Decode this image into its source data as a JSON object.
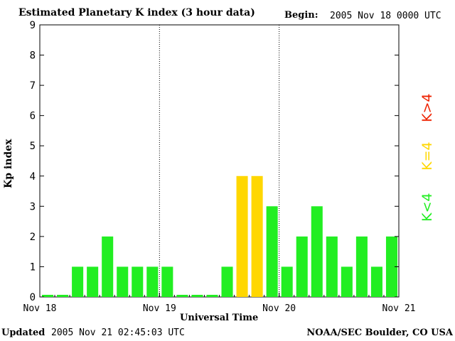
{
  "header": {
    "title": "Estimated Planetary K index (3 hour data)",
    "begin_label": "Begin:",
    "begin_value": "2005 Nov 18 0000 UTC"
  },
  "footer": {
    "updated_label": "Updated",
    "updated_value": "2005 Nov 21 02:45:03 UTC",
    "agency": "NOAA/SEC Boulder, CO USA"
  },
  "legend": {
    "high": "K>4",
    "equal": "K=4",
    "low": "K<4"
  },
  "colors": {
    "low": "#22ee22",
    "equal": "#ffd700",
    "high": "#ee2200"
  },
  "chart_data": {
    "type": "bar",
    "title": "Estimated Planetary K index (3 hour data)",
    "xlabel": "Universal Time",
    "ylabel": "Kp index",
    "ylim": [
      0,
      9
    ],
    "yticks": [
      0,
      1,
      2,
      3,
      4,
      5,
      6,
      7,
      8,
      9
    ],
    "xticks": [
      "Nov 18",
      "Nov 19",
      "Nov 20",
      "Nov 21"
    ],
    "grid": "dotted day separators",
    "values": [
      0,
      0,
      1,
      1,
      2,
      1,
      1,
      1,
      1,
      0,
      0,
      0,
      1,
      4,
      4,
      3,
      1,
      2,
      3,
      2,
      1,
      2,
      1,
      2
    ]
  }
}
